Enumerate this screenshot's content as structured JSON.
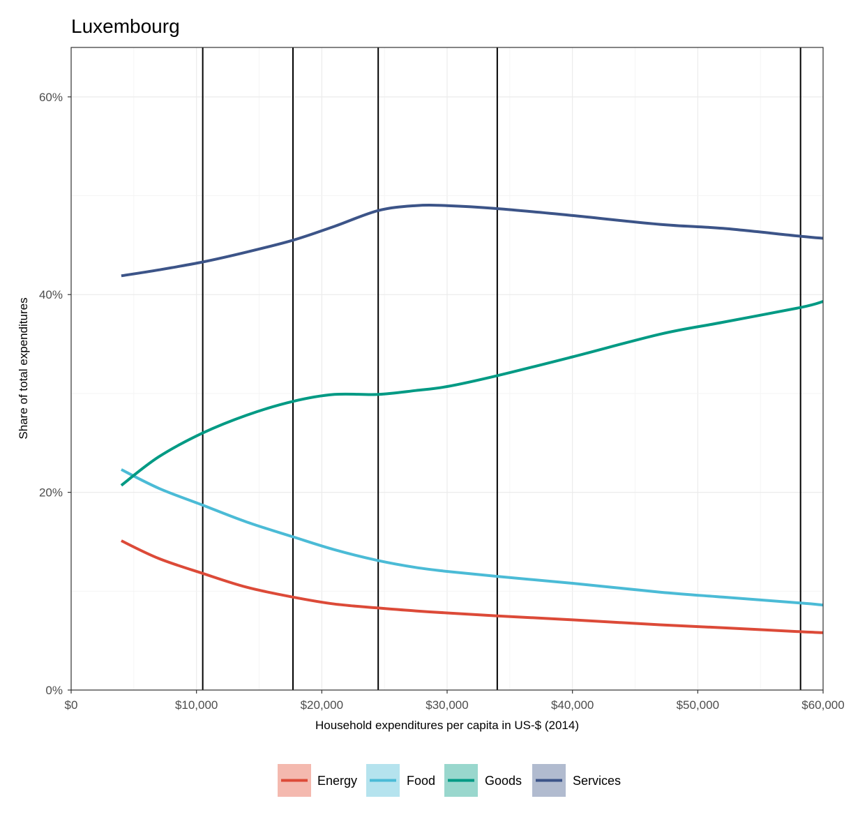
{
  "chart_data": {
    "type": "line",
    "title": "Luxembourg",
    "xlabel": "Household expenditures per capita in US-$ (2014)",
    "ylabel": "Share of total expenditures",
    "xlim": [
      0,
      60000
    ],
    "ylim": [
      0,
      0.65
    ],
    "x_ticks": [
      {
        "value": 0,
        "label": "$0"
      },
      {
        "value": 10000,
        "label": "$10,000"
      },
      {
        "value": 20000,
        "label": "$20,000"
      },
      {
        "value": 30000,
        "label": "$30,000"
      },
      {
        "value": 40000,
        "label": "$40,000"
      },
      {
        "value": 50000,
        "label": "$50,000"
      },
      {
        "value": 60000,
        "label": "$60,000"
      }
    ],
    "y_ticks": [
      {
        "value": 0,
        "label": "0%"
      },
      {
        "value": 0.2,
        "label": "20%"
      },
      {
        "value": 0.4,
        "label": "40%"
      },
      {
        "value": 0.6,
        "label": "60%"
      }
    ],
    "vertical_lines": [
      10500,
      17700,
      24500,
      34000,
      58200
    ],
    "grid": true,
    "legend_position": "bottom",
    "x": [
      4000,
      7000,
      10500,
      14000,
      17700,
      21000,
      24500,
      27500,
      30000,
      34000,
      40000,
      47000,
      52000,
      58200,
      60000
    ],
    "series": [
      {
        "name": "Energy",
        "color": "#dc4a38",
        "legend_fill": "#f4b9af",
        "values": [
          0.151,
          0.133,
          0.118,
          0.104,
          0.094,
          0.087,
          0.083,
          0.08,
          0.078,
          0.075,
          0.071,
          0.066,
          0.063,
          0.059,
          0.058
        ]
      },
      {
        "name": "Food",
        "color": "#4bbbd6",
        "legend_fill": "#b5e3ee",
        "values": [
          0.223,
          0.204,
          0.187,
          0.17,
          0.155,
          0.142,
          0.131,
          0.124,
          0.12,
          0.115,
          0.108,
          0.099,
          0.094,
          0.088,
          0.086
        ]
      },
      {
        "name": "Goods",
        "color": "#009a84",
        "legend_fill": "#99d7cd",
        "values": [
          0.207,
          0.236,
          0.26,
          0.278,
          0.292,
          0.299,
          0.299,
          0.303,
          0.307,
          0.318,
          0.337,
          0.36,
          0.372,
          0.387,
          0.393
        ]
      },
      {
        "name": "Services",
        "color": "#3c5488",
        "legend_fill": "#b1bbcf",
        "values": [
          0.419,
          0.425,
          0.433,
          0.443,
          0.455,
          0.469,
          0.485,
          0.49,
          0.49,
          0.487,
          0.48,
          0.471,
          0.467,
          0.459,
          0.457
        ]
      }
    ]
  }
}
